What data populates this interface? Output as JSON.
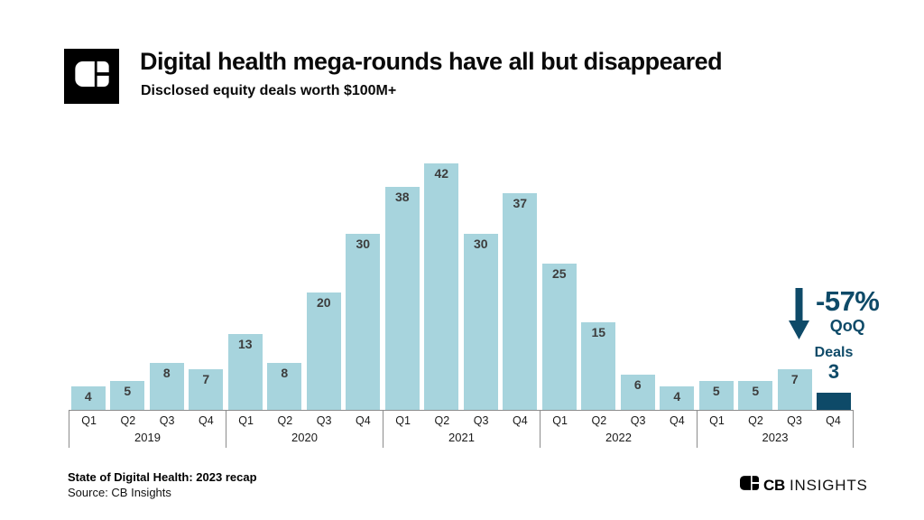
{
  "header": {
    "title": "Digital health mega-rounds have all but disappeared",
    "subtitle": "Disclosed equity deals worth $100M+"
  },
  "chart_data": {
    "type": "bar",
    "title": "Digital health mega-rounds have all but disappeared",
    "subtitle": "Disclosed equity deals worth $100M+",
    "quarter_labels": [
      "Q1",
      "Q2",
      "Q3",
      "Q4"
    ],
    "groups": [
      {
        "year": "2019",
        "values": [
          4,
          5,
          8,
          7
        ]
      },
      {
        "year": "2020",
        "values": [
          13,
          8,
          20,
          30
        ]
      },
      {
        "year": "2021",
        "values": [
          38,
          42,
          30,
          37
        ]
      },
      {
        "year": "2022",
        "values": [
          25,
          15,
          6,
          4
        ]
      },
      {
        "year": "2023",
        "values": [
          5,
          5,
          7,
          3
        ]
      }
    ],
    "ylim": [
      0,
      42
    ],
    "grid": false,
    "legend": false,
    "highlight_index": 19,
    "annotations": [
      {
        "text": "-57% QoQ",
        "target": "2023 Q4"
      },
      {
        "text": "Deals 3",
        "target": "2023 Q4"
      }
    ]
  },
  "annotation": {
    "pct_change": "-57%",
    "period": "QoQ",
    "deals_label": "Deals"
  },
  "icons": {
    "logo": "cb-insights-logo-icon",
    "arrow": "down-arrow-icon"
  },
  "footer": {
    "report": "State of Digital Health: 2023 recap",
    "source": "Source: CB Insights",
    "brand_cb": "CB",
    "brand_insights": "INSIGHTS"
  },
  "colors": {
    "accent": "#0e4a68",
    "bar": "#a7d4dd",
    "bar_label": "#3d3d3d",
    "axis_line": "#8c8c8c"
  }
}
